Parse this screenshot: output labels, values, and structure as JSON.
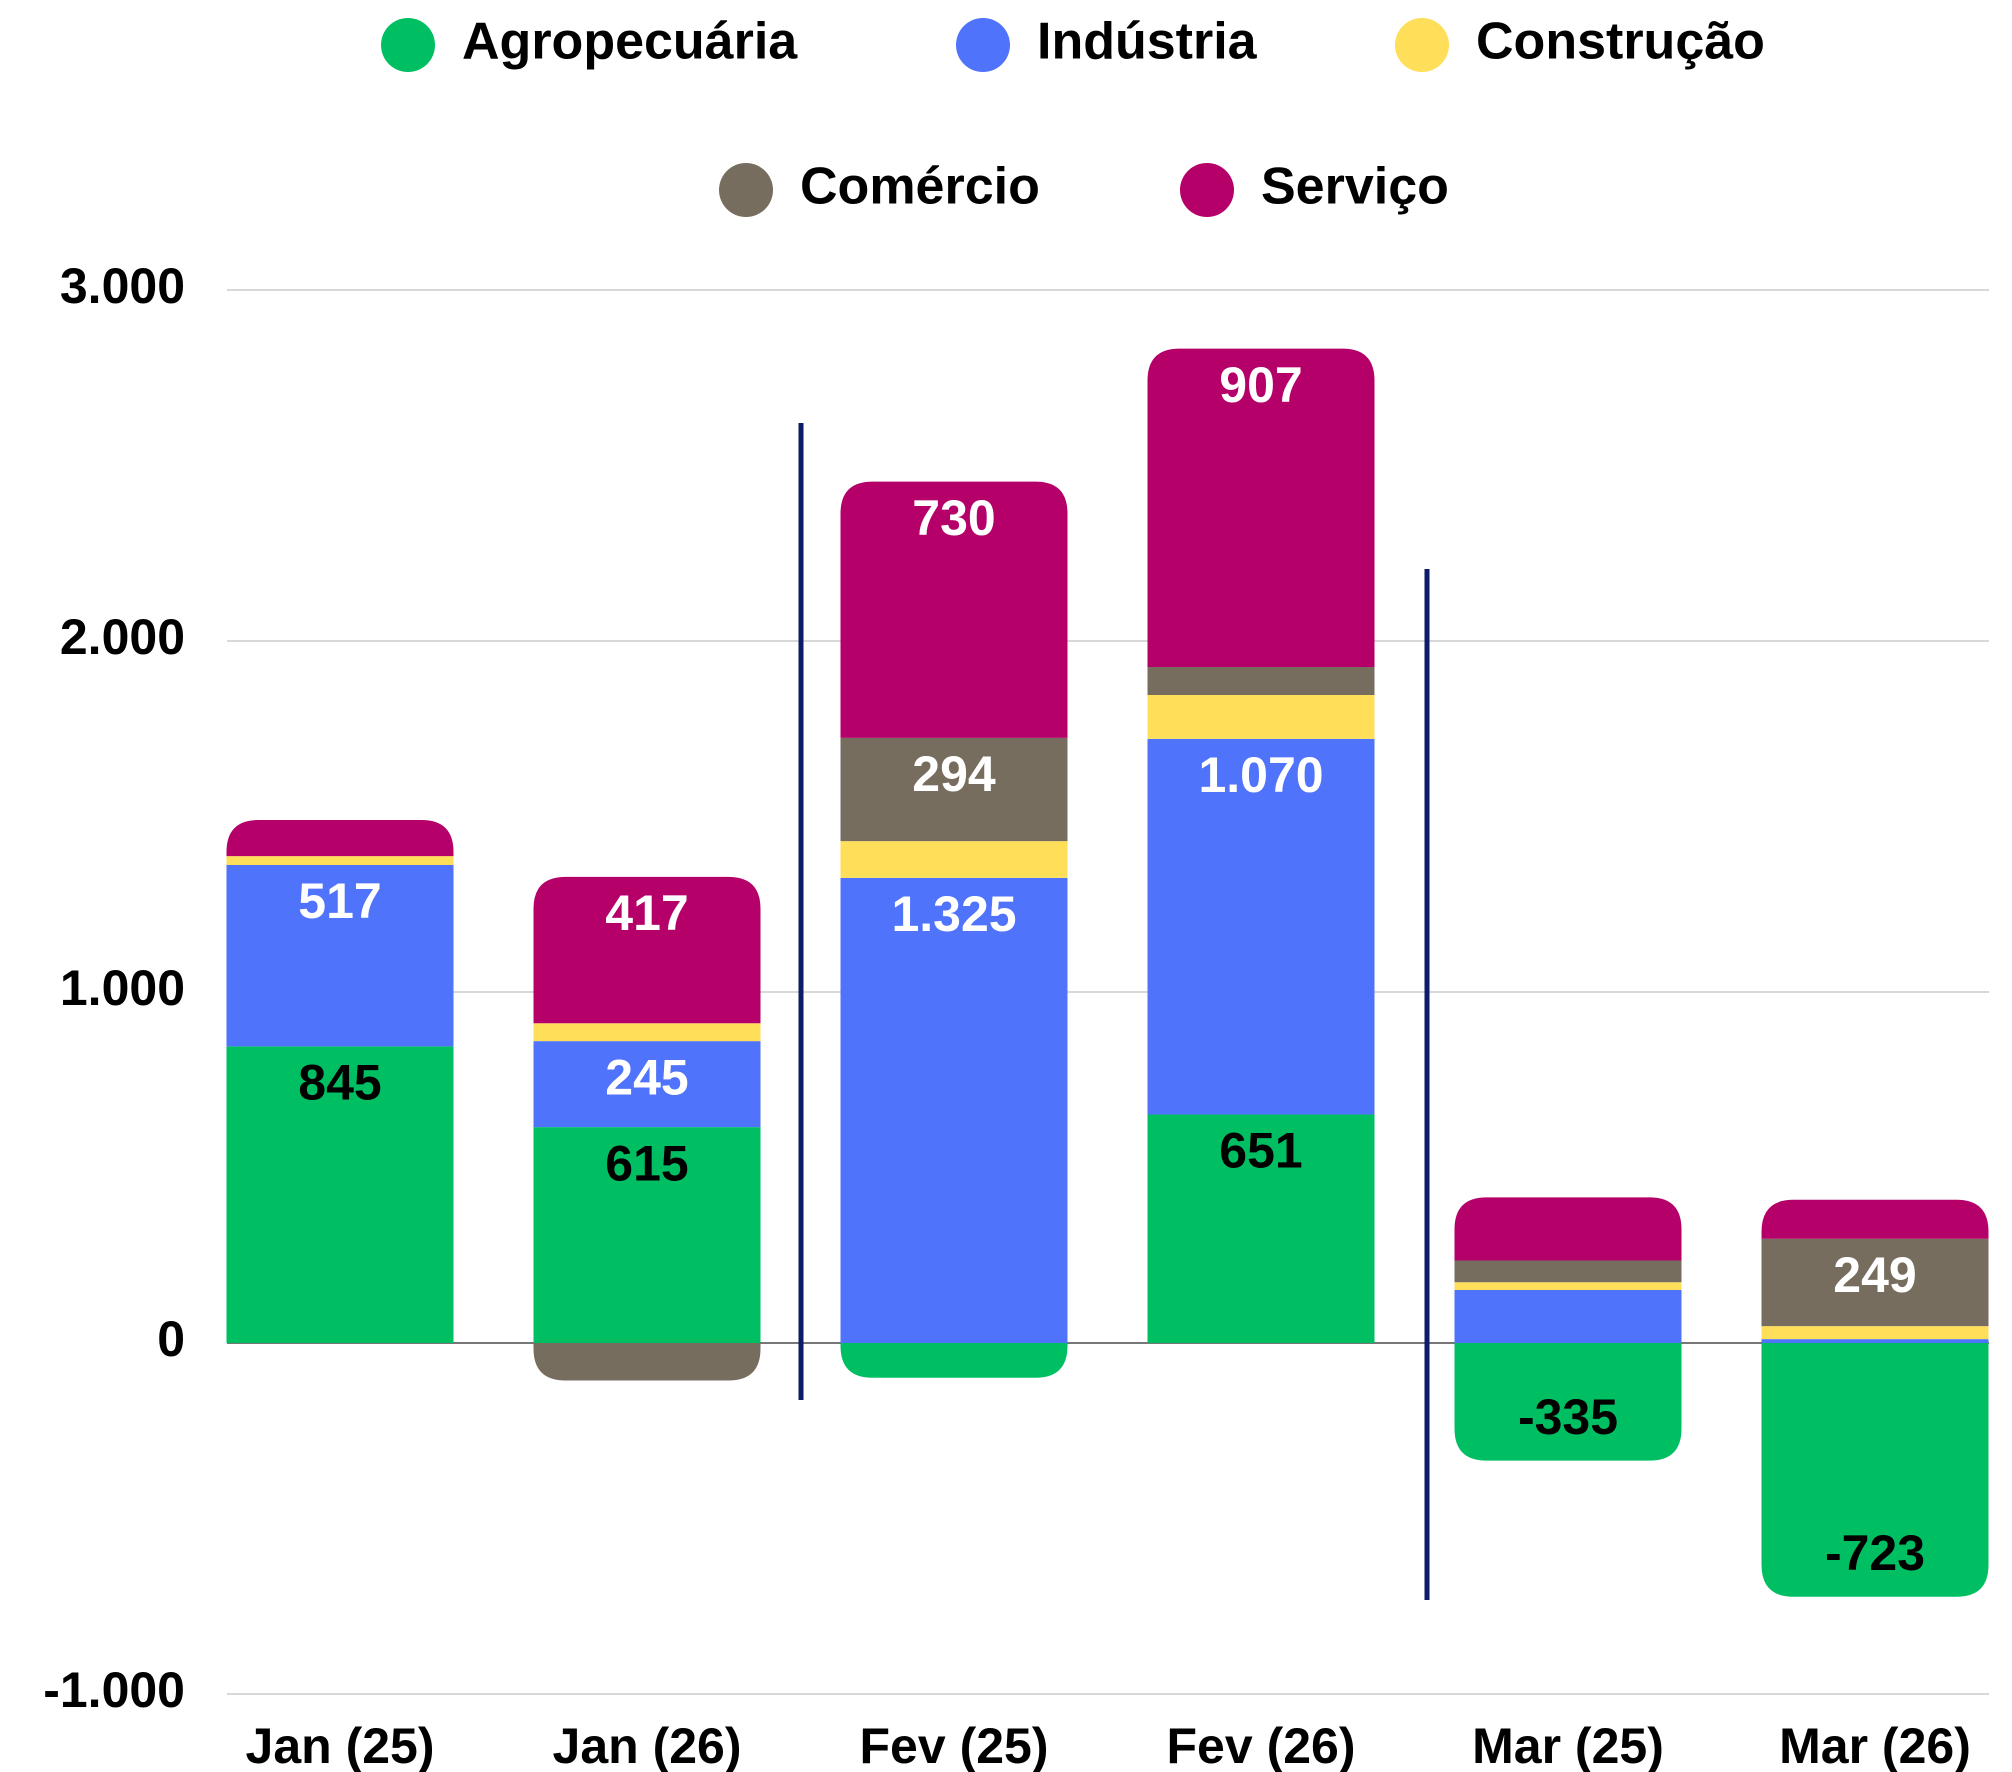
{
  "chart_data": {
    "type": "stacked_bar",
    "categories": [
      "Jan (25)",
      "Jan (26)",
      "Fev (25)",
      "Fev (26)",
      "Mar (25)",
      "Mar (26)"
    ],
    "series": [
      {
        "name": "Agropecuária",
        "color": "#00bf63",
        "values": [
          845,
          615,
          -99,
          651,
          -335,
          -723
        ],
        "value_labels": [
          "845",
          "615",
          null,
          "651",
          "-335",
          "-723"
        ]
      },
      {
        "name": "Indústria",
        "color": "#4f73fa",
        "values": [
          517,
          245,
          1325,
          1070,
          151,
          11
        ],
        "value_labels": [
          "517",
          "245",
          "1.325",
          "1.070",
          null,
          null
        ]
      },
      {
        "name": "Construção",
        "color": "#ffde59",
        "values": [
          25,
          51,
          105,
          125,
          22,
          37
        ],
        "value_labels": [
          null,
          null,
          null,
          null,
          null,
          null
        ]
      },
      {
        "name": "Comércio",
        "color": "#776d5f",
        "values": [
          0,
          -107,
          294,
          80,
          62,
          249
        ],
        "value_labels": [
          null,
          null,
          "294",
          null,
          null,
          "249"
        ]
      },
      {
        "name": "Serviço",
        "color": "#b5006a",
        "values": [
          103,
          417,
          730,
          907,
          180,
          111
        ],
        "value_labels": [
          null,
          "417",
          "730",
          "907",
          null,
          null
        ]
      }
    ],
    "ylim": [
      -1000,
      3000
    ],
    "yticks": [
      {
        "value": -1000,
        "label": "-1.000"
      },
      0,
      {
        "value": 1000,
        "label": "1.000"
      },
      {
        "value": 2000,
        "label": "2.000"
      },
      {
        "value": 3000,
        "label": "3.000"
      }
    ],
    "grid": true
  }
}
